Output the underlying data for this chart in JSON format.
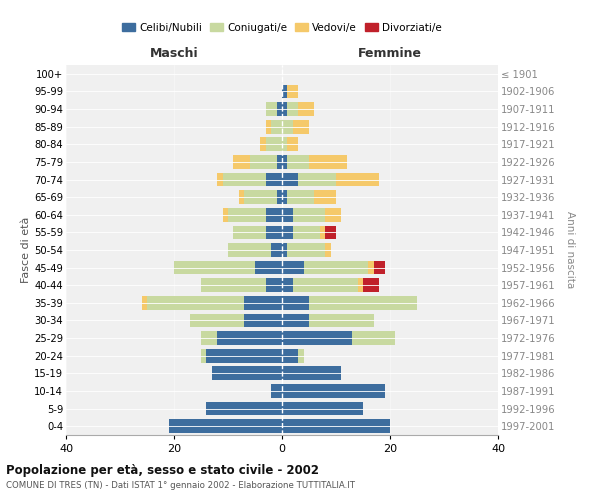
{
  "age_groups": [
    "0-4",
    "5-9",
    "10-14",
    "15-19",
    "20-24",
    "25-29",
    "30-34",
    "35-39",
    "40-44",
    "45-49",
    "50-54",
    "55-59",
    "60-64",
    "65-69",
    "70-74",
    "75-79",
    "80-84",
    "85-89",
    "90-94",
    "95-99",
    "100+"
  ],
  "birth_years": [
    "1997-2001",
    "1992-1996",
    "1987-1991",
    "1982-1986",
    "1977-1981",
    "1972-1976",
    "1967-1971",
    "1962-1966",
    "1957-1961",
    "1952-1956",
    "1947-1951",
    "1942-1946",
    "1937-1941",
    "1932-1936",
    "1927-1931",
    "1922-1926",
    "1917-1921",
    "1912-1916",
    "1907-1911",
    "1902-1906",
    "≤ 1901"
  ],
  "maschi": {
    "celibi": [
      21,
      14,
      2,
      13,
      14,
      12,
      7,
      7,
      3,
      5,
      2,
      3,
      3,
      1,
      3,
      1,
      0,
      0,
      1,
      0,
      0
    ],
    "coniugati": [
      0,
      0,
      0,
      0,
      1,
      3,
      10,
      18,
      12,
      15,
      8,
      6,
      7,
      6,
      8,
      5,
      3,
      2,
      2,
      0,
      0
    ],
    "vedovi": [
      0,
      0,
      0,
      0,
      0,
      0,
      0,
      1,
      0,
      0,
      0,
      0,
      1,
      1,
      1,
      3,
      1,
      1,
      0,
      0,
      0
    ],
    "divorziati": [
      0,
      0,
      0,
      0,
      0,
      0,
      0,
      0,
      0,
      0,
      0,
      0,
      0,
      0,
      0,
      0,
      0,
      0,
      0,
      0,
      0
    ]
  },
  "femmine": {
    "nubili": [
      20,
      15,
      19,
      11,
      3,
      13,
      5,
      5,
      2,
      4,
      1,
      2,
      2,
      1,
      3,
      1,
      0,
      0,
      1,
      1,
      0
    ],
    "coniugate": [
      0,
      0,
      0,
      0,
      1,
      8,
      12,
      20,
      12,
      12,
      7,
      5,
      6,
      5,
      7,
      4,
      1,
      2,
      2,
      0,
      0
    ],
    "vedove": [
      0,
      0,
      0,
      0,
      0,
      0,
      0,
      0,
      1,
      1,
      1,
      1,
      3,
      4,
      8,
      7,
      2,
      3,
      3,
      2,
      0
    ],
    "divorziate": [
      0,
      0,
      0,
      0,
      0,
      0,
      0,
      0,
      3,
      2,
      0,
      2,
      0,
      0,
      0,
      0,
      0,
      0,
      0,
      0,
      0
    ]
  },
  "colors": {
    "celibi_nubili": "#3d6d9e",
    "coniugati": "#c8d9a0",
    "vedovi": "#f5c96a",
    "divorziati": "#c0202a"
  },
  "title": "Popolazione per età, sesso e stato civile - 2002",
  "subtitle": "COMUNE DI TRES (TN) - Dati ISTAT 1° gennaio 2002 - Elaborazione TUTTITALIA.IT",
  "xlabel_left": "Maschi",
  "xlabel_right": "Femmine",
  "ylabel_left": "Fasce di età",
  "ylabel_right": "Anni di nascita",
  "xlim": 40,
  "xticks": [
    -40,
    -20,
    0,
    20,
    40
  ],
  "xticklabels": [
    "40",
    "20",
    "0",
    "20",
    "40"
  ],
  "legend_labels": [
    "Celibi/Nubili",
    "Coniugati/e",
    "Vedovi/e",
    "Divorziati/e"
  ],
  "bg_color": "#ffffff",
  "plot_bg": "#f0f0f0",
  "grid_color": "#cccccc"
}
